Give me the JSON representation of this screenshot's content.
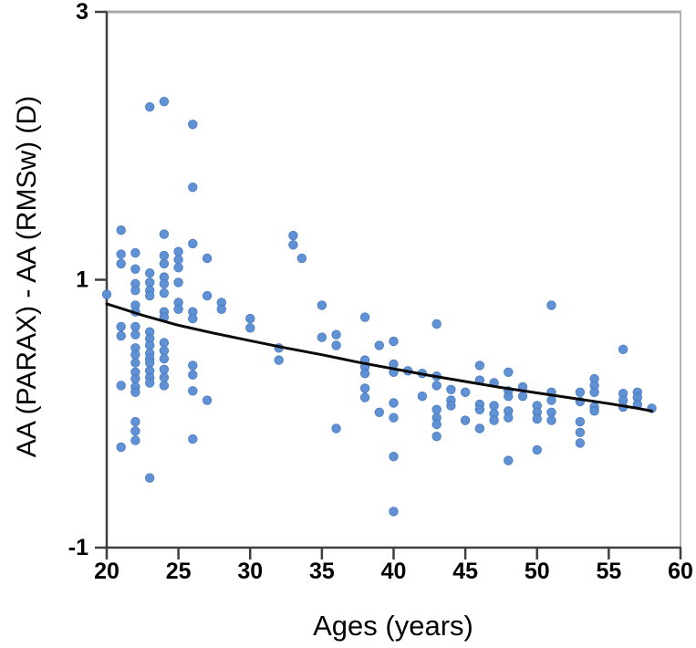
{
  "figure": {
    "background": "#ffffff"
  },
  "chart_data": {
    "type": "scatter",
    "title": "",
    "xlabel": "Ages (years)",
    "ylabel": "AA (PARAX) - AA (RMSw) (D)",
    "xlim": [
      20,
      60
    ],
    "ylim": [
      -1,
      3
    ],
    "x_ticks": [
      20,
      25,
      30,
      35,
      40,
      45,
      50,
      55,
      60
    ],
    "y_ticks": [
      3,
      1,
      -1
    ],
    "grid": false,
    "legend": null,
    "styles": {
      "marker_color": "#5b8dd3",
      "marker_edge": "#4a7cc2",
      "marker_radius": 4.8,
      "trend_color": "#0a0a0a",
      "trend_width": 3,
      "axis_color": "#3f3f3f",
      "border_top_color": "#a8a8a8",
      "border_right_color": "#b4b4b4",
      "tick_font_px": 25,
      "tick_len": 13
    },
    "series": [
      {
        "name": "subjects",
        "points": [
          [
            20,
            0.89
          ],
          [
            21,
            1.37
          ],
          [
            21,
            1.19
          ],
          [
            21,
            1.12
          ],
          [
            21,
            0.65
          ],
          [
            21,
            0.58
          ],
          [
            21,
            0.21
          ],
          [
            21,
            -0.25
          ],
          [
            22,
            1.2
          ],
          [
            22,
            1.08
          ],
          [
            22,
            0.97
          ],
          [
            22,
            0.92
          ],
          [
            22,
            0.81
          ],
          [
            22,
            0.76
          ],
          [
            22,
            0.65
          ],
          [
            22,
            0.59
          ],
          [
            22,
            0.49
          ],
          [
            22,
            0.44
          ],
          [
            22,
            0.38
          ],
          [
            22,
            0.31
          ],
          [
            22,
            0.26
          ],
          [
            22,
            0.2
          ],
          [
            22,
            0.16
          ],
          [
            22,
            -0.06
          ],
          [
            22,
            -0.13
          ],
          [
            22,
            -0.2
          ],
          [
            23,
            2.29
          ],
          [
            23,
            1.05
          ],
          [
            23,
            0.98
          ],
          [
            23,
            0.92
          ],
          [
            23,
            0.88
          ],
          [
            23,
            0.61
          ],
          [
            23,
            0.56
          ],
          [
            23,
            0.51
          ],
          [
            23,
            0.45
          ],
          [
            23,
            0.41
          ],
          [
            23,
            0.38
          ],
          [
            23,
            0.32
          ],
          [
            23,
            0.27
          ],
          [
            23,
            0.23
          ],
          [
            23,
            -0.48
          ],
          [
            24,
            2.33
          ],
          [
            24,
            1.34
          ],
          [
            24,
            1.18
          ],
          [
            24,
            1.12
          ],
          [
            24,
            1.02
          ],
          [
            24,
            0.97
          ],
          [
            24,
            0.9
          ],
          [
            24,
            0.76
          ],
          [
            24,
            0.72
          ],
          [
            24,
            0.53
          ],
          [
            24,
            0.47
          ],
          [
            24,
            0.41
          ],
          [
            24,
            0.33
          ],
          [
            24,
            0.27
          ],
          [
            24,
            0.21
          ],
          [
            25,
            1.21
          ],
          [
            25,
            1.15
          ],
          [
            25,
            1.09
          ],
          [
            25,
            0.98
          ],
          [
            25,
            0.83
          ],
          [
            25,
            0.78
          ],
          [
            26,
            2.16
          ],
          [
            26,
            1.69
          ],
          [
            26,
            1.27
          ],
          [
            26,
            0.76
          ],
          [
            26,
            0.71
          ],
          [
            26,
            0.36
          ],
          [
            26,
            0.29
          ],
          [
            26,
            0.17
          ],
          [
            26,
            -0.19
          ],
          [
            27,
            1.16
          ],
          [
            27,
            0.88
          ],
          [
            27,
            0.1
          ],
          [
            28,
            0.83
          ],
          [
            28,
            0.78
          ],
          [
            30,
            0.71
          ],
          [
            30,
            0.64
          ],
          [
            32,
            0.49
          ],
          [
            32,
            0.4
          ],
          [
            33,
            1.33
          ],
          [
            33,
            1.26
          ],
          [
            33.6,
            1.16
          ],
          [
            35,
            0.81
          ],
          [
            35,
            0.57
          ],
          [
            36,
            0.59
          ],
          [
            36,
            0.51
          ],
          [
            36,
            -0.11
          ],
          [
            38,
            0.72
          ],
          [
            38,
            0.4
          ],
          [
            38,
            0.35
          ],
          [
            38,
            0.3
          ],
          [
            38,
            0.19
          ],
          [
            38,
            0.12
          ],
          [
            39,
            0.51
          ],
          [
            39,
            0.01
          ],
          [
            40,
            0.54
          ],
          [
            40,
            0.37
          ],
          [
            40,
            0.31
          ],
          [
            40,
            0.08
          ],
          [
            40,
            -0.03
          ],
          [
            40,
            -0.32
          ],
          [
            40,
            -0.73
          ],
          [
            41,
            0.32
          ],
          [
            42,
            0.3
          ],
          [
            42,
            0.13
          ],
          [
            43,
            0.67
          ],
          [
            43,
            0.28
          ],
          [
            43,
            0.21
          ],
          [
            43,
            0.03
          ],
          [
            43,
            -0.03
          ],
          [
            43,
            -0.08
          ],
          [
            43,
            -0.17
          ],
          [
            44,
            0.18
          ],
          [
            44,
            0.1
          ],
          [
            44,
            0.06
          ],
          [
            45,
            0.16
          ],
          [
            45,
            -0.05
          ],
          [
            46,
            0.36
          ],
          [
            46,
            0.25
          ],
          [
            46,
            0.07
          ],
          [
            46,
            0.03
          ],
          [
            46,
            -0.11
          ],
          [
            47,
            0.23
          ],
          [
            47,
            0.06
          ],
          [
            47,
            0.0
          ],
          [
            47,
            -0.05
          ],
          [
            48,
            0.31
          ],
          [
            48,
            0.17
          ],
          [
            48,
            0.13
          ],
          [
            48,
            0.02
          ],
          [
            48,
            -0.03
          ],
          [
            48,
            -0.35
          ],
          [
            49,
            0.2
          ],
          [
            49,
            0.13
          ],
          [
            50,
            0.06
          ],
          [
            50,
            0.01
          ],
          [
            50,
            -0.04
          ],
          [
            50,
            -0.27
          ],
          [
            51,
            0.81
          ],
          [
            51,
            0.16
          ],
          [
            51,
            0.1
          ],
          [
            51,
            0.01
          ],
          [
            51,
            -0.05
          ],
          [
            53,
            0.16
          ],
          [
            53,
            0.09
          ],
          [
            53,
            -0.06
          ],
          [
            53,
            -0.14
          ],
          [
            53,
            -0.22
          ],
          [
            54,
            0.26
          ],
          [
            54,
            0.21
          ],
          [
            54,
            0.16
          ],
          [
            54,
            0.05
          ],
          [
            54,
            0.02
          ],
          [
            56,
            0.48
          ],
          [
            56,
            0.15
          ],
          [
            56,
            0.1
          ],
          [
            56,
            0.05
          ],
          [
            57,
            0.16
          ],
          [
            57,
            0.12
          ],
          [
            57,
            0.07
          ],
          [
            58,
            0.04
          ]
        ]
      }
    ],
    "trend_line": {
      "description": "fitted decreasing curve",
      "samples": [
        [
          20,
          0.82
        ],
        [
          22.5,
          0.735
        ],
        [
          25,
          0.66
        ],
        [
          27.5,
          0.6
        ],
        [
          30,
          0.545
        ],
        [
          32.5,
          0.49
        ],
        [
          35,
          0.44
        ],
        [
          37.5,
          0.385
        ],
        [
          40,
          0.335
        ],
        [
          42.5,
          0.285
        ],
        [
          45,
          0.24
        ],
        [
          47.5,
          0.195
        ],
        [
          50,
          0.155
        ],
        [
          52.5,
          0.115
        ],
        [
          55,
          0.075
        ],
        [
          57,
          0.04
        ],
        [
          58,
          0.02
        ]
      ]
    }
  }
}
